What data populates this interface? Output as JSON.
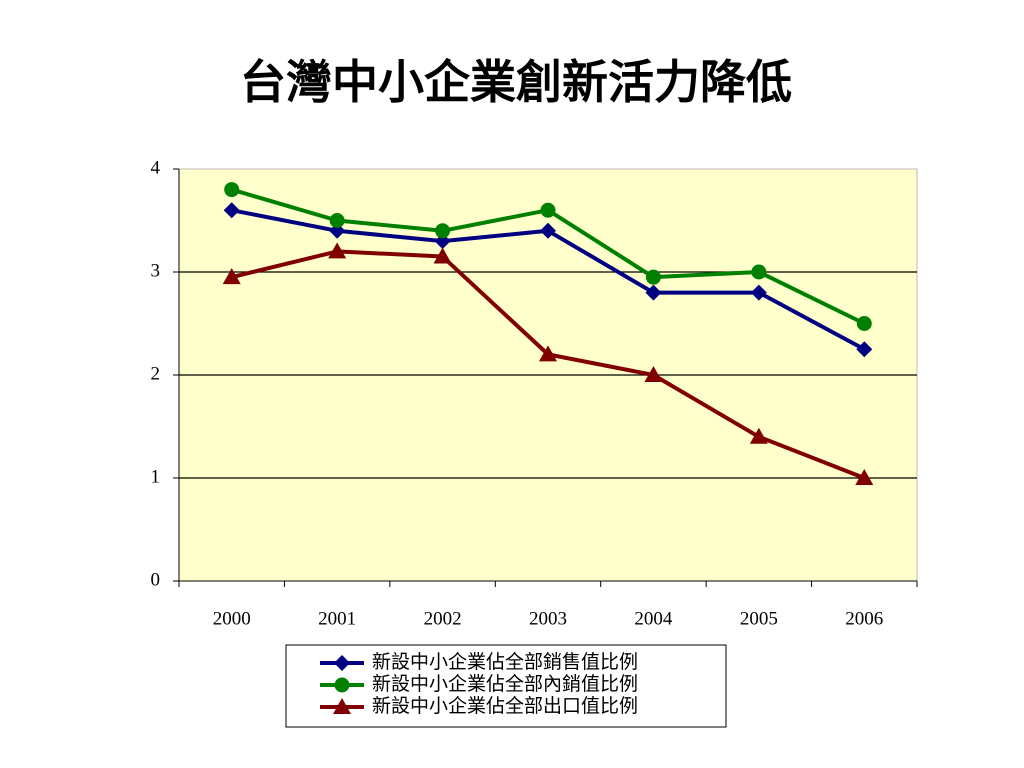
{
  "chart_data": {
    "type": "line",
    "title": "台灣中小企業創新活力降低",
    "categories": [
      "2000",
      "2001",
      "2002",
      "2003",
      "2004",
      "2005",
      "2006"
    ],
    "series": [
      {
        "name": "新設中小企業佔全部銷售值比例",
        "color": "#000080",
        "marker": "diamond",
        "values": [
          3.6,
          3.4,
          3.3,
          3.4,
          2.8,
          2.8,
          2.25
        ]
      },
      {
        "name": "新設中小企業佔全部內銷值比例",
        "color": "#008000",
        "marker": "circle",
        "values": [
          3.8,
          3.5,
          3.4,
          3.6,
          2.95,
          3.0,
          2.5
        ]
      },
      {
        "name": "新設中小企業佔全部出口值比例",
        "color": "#800000",
        "marker": "triangle",
        "values": [
          2.95,
          3.2,
          3.15,
          2.2,
          2.0,
          1.4,
          1.0
        ]
      }
    ],
    "ylim": [
      0,
      4
    ],
    "yticks": [
      0,
      1,
      2,
      3,
      4
    ],
    "grid": true
  }
}
